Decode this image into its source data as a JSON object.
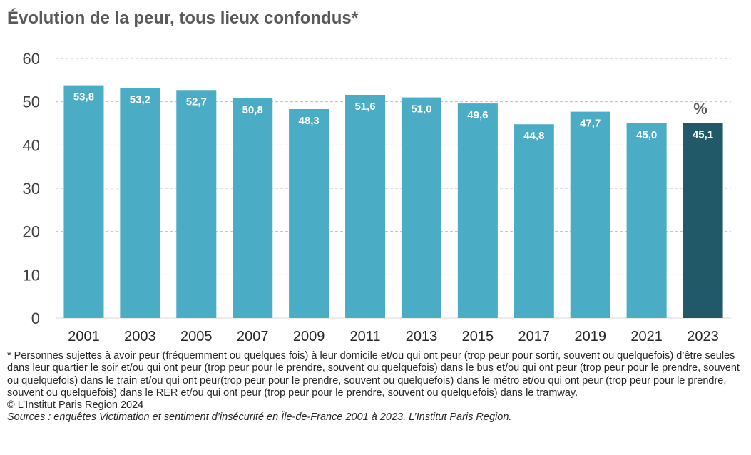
{
  "chart_data": {
    "type": "bar",
    "title": "Évolution de la peur, tous lieux confondus*",
    "unit_label": "%",
    "categories": [
      "2001",
      "2003",
      "2005",
      "2007",
      "2009",
      "2011",
      "2013",
      "2015",
      "2017",
      "2019",
      "2021",
      "2023"
    ],
    "values": [
      53.8,
      53.2,
      52.7,
      50.8,
      48.3,
      51.6,
      51.0,
      49.6,
      44.8,
      47.7,
      45.0,
      45.1
    ],
    "value_labels": [
      "53,8",
      "53,2",
      "52,7",
      "50,8",
      "48,3",
      "51,6",
      "51,0",
      "49,6",
      "44,8",
      "47,7",
      "45,0",
      "45,1"
    ],
    "highlight_category": "2023",
    "ylim": [
      0,
      60
    ],
    "yticks": [
      0,
      10,
      20,
      30,
      40,
      50,
      60
    ],
    "grid": "horizontal dashed",
    "xlabel": "",
    "ylabel": "",
    "colors": {
      "bar": "#4BACC6",
      "highlight_bar": "#215968",
      "value_label": "#ffffff",
      "grid": "#BFBFBF"
    }
  },
  "footnote": {
    "note": "* Personnes sujettes à avoir peur (fréquemment ou quelques fois) à leur domicile et/ou qui ont peur (trop peur pour sortir, souvent ou quelquefois) d’être seules dans leur quartier le soir et/ou qui ont peur (trop peur pour le prendre, souvent ou quelquefois) dans le bus et/ou qui ont peur (trop peur pour le prendre, souvent ou quelquefois) dans le train et/ou qui ont peur(trop peur pour le prendre, souvent ou quelquefois)  dans le métro et/ou qui ont peur (trop peur pour le prendre, souvent ou quelquefois) dans le RER et/ou qui ont peur (trop peur pour le prendre, souvent ou quelquefois) dans le tramway.",
    "copyright": "© L’Institut Paris Region 2024",
    "sources": "Sources : enquêtes Victimation et sentiment d’insécurité en Île-de-France 2001 à 2023, L’Institut Paris Region."
  }
}
